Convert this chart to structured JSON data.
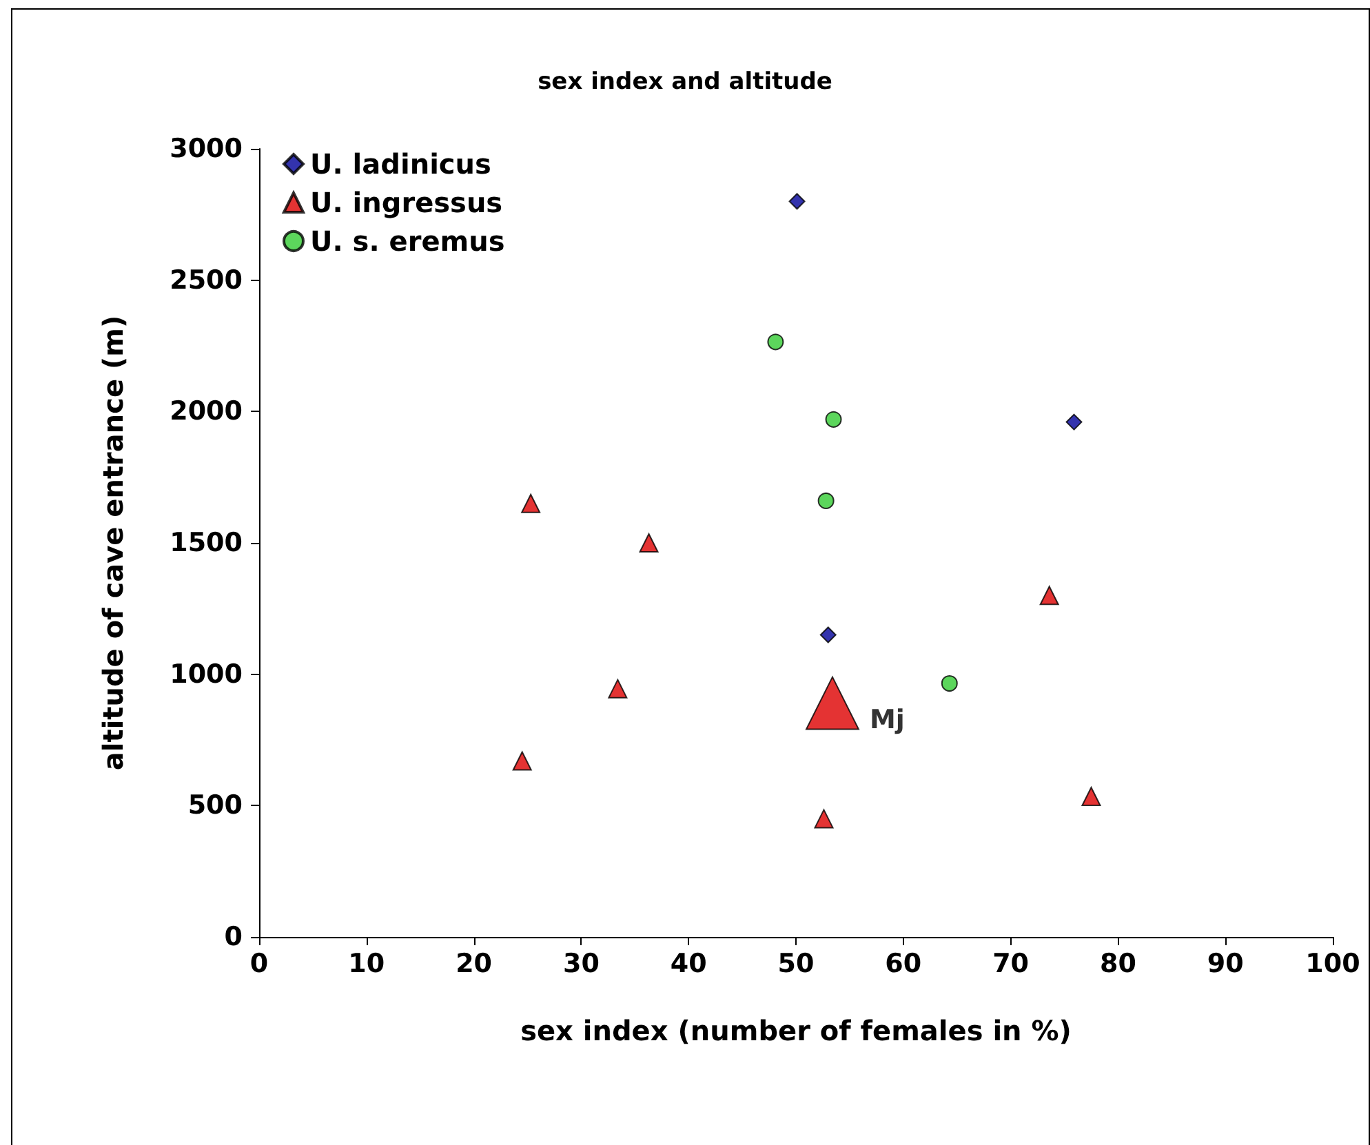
{
  "chart_data": {
    "type": "scatter",
    "title": "sex index and altitude",
    "xlabel": "sex index (number of females in %)",
    "ylabel": "altitude of cave entrance (m)",
    "xlim": [
      0,
      100
    ],
    "xticks": [
      0,
      10,
      20,
      30,
      40,
      50,
      60,
      70,
      80,
      90,
      100
    ],
    "ylim": [
      0,
      3000
    ],
    "yticks": [
      0,
      500,
      1000,
      1500,
      2000,
      2500,
      3000
    ],
    "grid": false,
    "legend": "top left",
    "series": [
      {
        "name": "U. ladinicus",
        "color": "#000099",
        "marker": "diamond",
        "x": [
          50.1,
          75.9,
          53.0
        ],
        "values": [
          2800,
          1960,
          1150
        ]
      },
      {
        "name": "U. ingressus",
        "color": "#dd0000",
        "marker": "triangle",
        "x": [
          25.3,
          36.3,
          73.6,
          33.4,
          24.5,
          52.6,
          77.5
        ],
        "values": [
          1650,
          1500,
          1300,
          945,
          670,
          450,
          535
        ]
      },
      {
        "name": "U. s. eremus",
        "color": "#33cc33",
        "marker": "circle",
        "x": [
          48.1,
          53.5,
          52.8,
          64.3
        ],
        "values": [
          2265,
          1970,
          1660,
          965
        ]
      },
      {
        "type": "bubble",
        "color": "#dd0000",
        "marker": "triangle",
        "x": [
          53.4
        ],
        "values": [
          890
        ],
        "sizes": [
          1
        ]
      }
    ],
    "annotations": [
      {
        "text": "Mj",
        "x": 53.4,
        "y": 890
      }
    ]
  }
}
